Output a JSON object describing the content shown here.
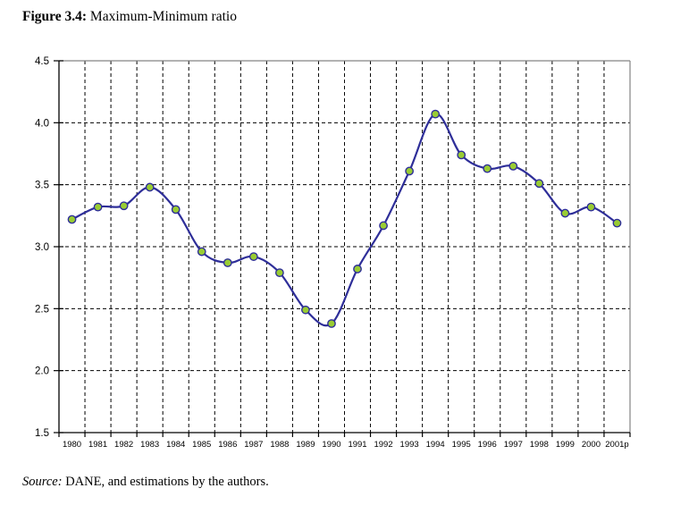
{
  "title": {
    "label": "Figure 3.4:",
    "text": " Maximum-Minimum ratio"
  },
  "source": {
    "label": "Source:",
    "text": " DANE, and estimations by the authors."
  },
  "chart_data": {
    "type": "line",
    "title": "Figure 3.4: Maximum-Minimum ratio",
    "categories": [
      "1980",
      "1981",
      "1982",
      "1983",
      "1984",
      "1985",
      "1986",
      "1987",
      "1988",
      "1989",
      "1990",
      "1991",
      "1992",
      "1993",
      "1994",
      "1995",
      "1996",
      "1997",
      "1998",
      "1999",
      "2000",
      "2001p"
    ],
    "values": [
      3.22,
      3.32,
      3.33,
      3.48,
      3.3,
      2.96,
      2.87,
      2.92,
      2.79,
      2.49,
      2.38,
      2.82,
      3.17,
      3.61,
      4.07,
      3.74,
      3.63,
      3.65,
      3.51,
      3.27,
      3.32,
      3.19
    ],
    "xlabel": "",
    "ylabel": "",
    "ylim": [
      1.5,
      4.5
    ],
    "ytick_step": 0.5,
    "ytick_labels": [
      "1.5",
      "2.0",
      "2.5",
      "3.0",
      "3.5",
      "4.0",
      "4.5"
    ],
    "grid": "dashed",
    "legend": "none",
    "smoothed": true,
    "line_color": "#2e2e99",
    "marker_fill": "#99cc33",
    "marker_stroke": "#2e2e99",
    "grid_color": "#000000",
    "axis_color": "#000000",
    "border_color": "#848484",
    "label_color": "#000000"
  }
}
